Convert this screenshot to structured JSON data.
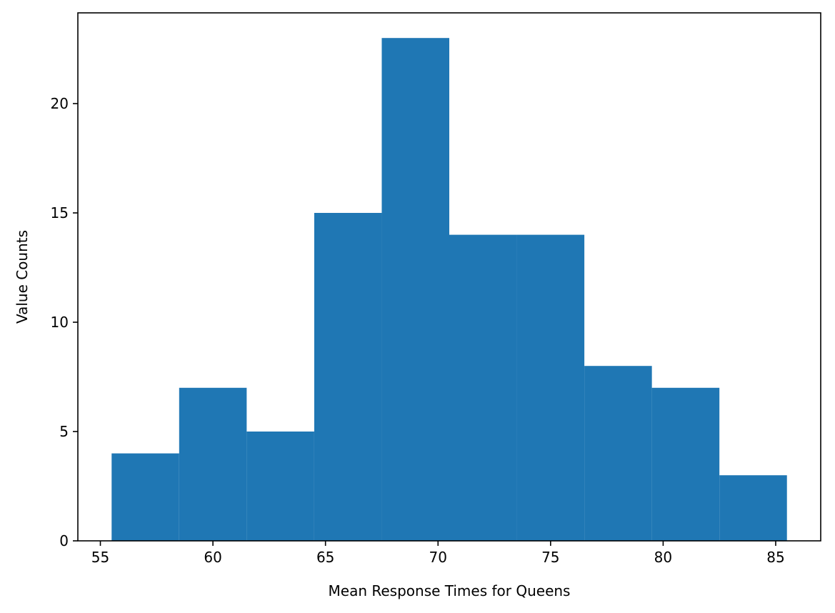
{
  "chart_data": {
    "type": "bar",
    "subtype": "histogram",
    "title": "",
    "xlabel": "Mean Response Times for Queens",
    "ylabel": "Value Counts",
    "xlim": [
      54,
      87
    ],
    "ylim": [
      0,
      24.15
    ],
    "bin_edges": [
      55.5,
      58.5,
      61.5,
      64.5,
      67.5,
      70.5,
      73.5,
      76.5,
      79.5,
      82.5,
      85.5
    ],
    "counts": [
      4,
      7,
      5,
      15,
      23,
      14,
      14,
      8,
      7,
      3
    ],
    "x_ticks": [
      55,
      60,
      65,
      70,
      75,
      80,
      85
    ],
    "y_ticks": [
      0,
      5,
      10,
      15,
      20
    ],
    "bar_color": "#1f77b4",
    "grid": false,
    "legend": "none"
  }
}
